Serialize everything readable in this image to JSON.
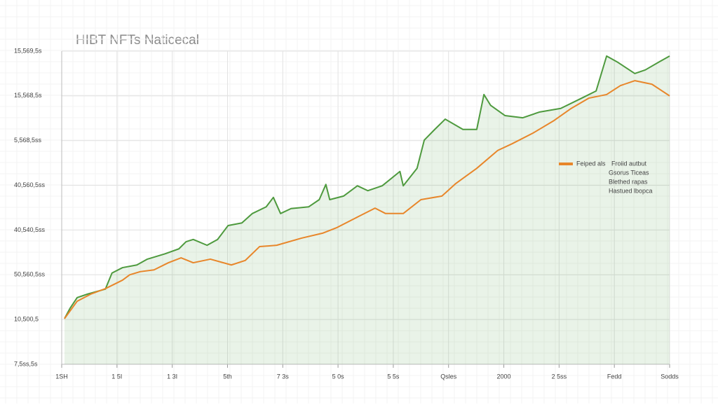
{
  "chart_data": {
    "type": "line",
    "title": "HIBT NFTs Naticecal",
    "xlim": [
      0,
      11
    ],
    "xticks": [
      {
        "value": 0,
        "label": "1SH"
      },
      {
        "value": 1,
        "label": "1 5I"
      },
      {
        "value": 2,
        "label": "1 3I"
      },
      {
        "value": 3,
        "label": "5th"
      },
      {
        "value": 4,
        "label": "7 3s"
      },
      {
        "value": 5,
        "label": "5 0s"
      },
      {
        "value": 6,
        "label": "5 5s"
      },
      {
        "value": 7,
        "label": "Qsles"
      },
      {
        "value": 8,
        "label": "2000"
      },
      {
        "value": 9,
        "label": "2 5ss"
      },
      {
        "value": 10,
        "label": "Fedd"
      },
      {
        "value": 11,
        "label": "Sodds"
      }
    ],
    "ylim": [
      0,
      7
    ],
    "yticks": [
      {
        "value": 0,
        "label": "7,5ss,5s"
      },
      {
        "value": 1,
        "label": "10,500,5"
      },
      {
        "value": 2,
        "label": "50,560,5ss"
      },
      {
        "value": 3,
        "label": "40,540,5ss"
      },
      {
        "value": 4,
        "label": "40,560,5ss"
      },
      {
        "value": 5,
        "label": "5,568,5ss"
      },
      {
        "value": 6,
        "label": "15,568,5s"
      },
      {
        "value": 7,
        "label": "15,569,5s"
      }
    ],
    "grid": true,
    "series": [
      {
        "color": "#4e9a3e",
        "area": true,
        "x": [
          0.05,
          0.15,
          0.28,
          0.47,
          0.79,
          0.91,
          1.1,
          1.36,
          1.55,
          1.87,
          2.12,
          2.25,
          2.38,
          2.63,
          2.82,
          3.01,
          3.26,
          3.45,
          3.7,
          3.83,
          3.96,
          4.15,
          4.47,
          4.66,
          4.78,
          4.85,
          5.1,
          5.35,
          5.54,
          5.8,
          6.12,
          6.18,
          6.43,
          6.56,
          6.75,
          6.94,
          7.26,
          7.51,
          7.64,
          7.76,
          8.02,
          8.34,
          8.65,
          9.03,
          9.41,
          9.67,
          9.86,
          10.05,
          10.37,
          10.56,
          10.81,
          11.0
        ],
        "values": [
          1.02,
          1.25,
          1.49,
          1.57,
          1.68,
          2.04,
          2.16,
          2.22,
          2.35,
          2.47,
          2.58,
          2.74,
          2.79,
          2.66,
          2.79,
          3.1,
          3.16,
          3.37,
          3.52,
          3.73,
          3.37,
          3.48,
          3.52,
          3.68,
          4.02,
          3.68,
          3.76,
          3.99,
          3.88,
          3.99,
          4.31,
          3.99,
          4.38,
          5.01,
          5.25,
          5.48,
          5.25,
          5.25,
          6.03,
          5.79,
          5.56,
          5.51,
          5.64,
          5.72,
          5.95,
          6.11,
          6.89,
          6.76,
          6.5,
          6.58,
          6.76,
          6.89
        ]
      },
      {
        "name": "Feiped als",
        "color": "#e8862a",
        "x": [
          0.05,
          0.28,
          0.53,
          0.79,
          1.1,
          1.23,
          1.42,
          1.67,
          1.93,
          2.16,
          2.38,
          2.69,
          3.07,
          3.32,
          3.58,
          3.89,
          4.34,
          4.72,
          4.97,
          5.35,
          5.67,
          5.86,
          6.18,
          6.5,
          6.88,
          7.13,
          7.51,
          7.89,
          8.15,
          8.53,
          8.91,
          9.22,
          9.54,
          9.86,
          10.11,
          10.37,
          10.68,
          11.0
        ],
        "values": [
          1.02,
          1.41,
          1.57,
          1.69,
          1.88,
          2.0,
          2.07,
          2.11,
          2.27,
          2.38,
          2.27,
          2.35,
          2.22,
          2.32,
          2.63,
          2.66,
          2.82,
          2.93,
          3.05,
          3.29,
          3.49,
          3.37,
          3.37,
          3.68,
          3.76,
          4.04,
          4.38,
          4.78,
          4.93,
          5.17,
          5.45,
          5.72,
          5.95,
          6.03,
          6.23,
          6.34,
          6.26,
          6.0
        ]
      }
    ],
    "legend_notes": [
      "Froiid autbut",
      "Gsorus Ticeas",
      "Blethed rapas",
      "Hastued lbopca"
    ]
  }
}
